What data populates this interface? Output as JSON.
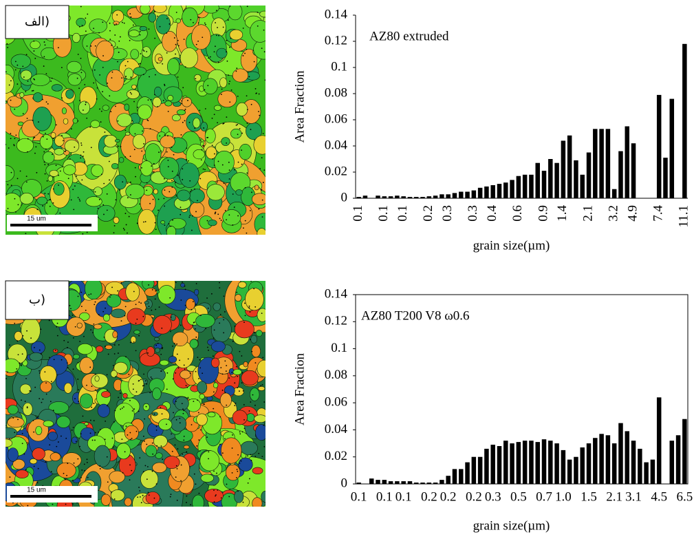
{
  "images": [
    {
      "label": "الف)",
      "scale_bar": "15 um"
    },
    {
      "label": "ب)",
      "scale_bar": "15 um"
    }
  ],
  "chart_data": [
    {
      "type": "bar",
      "annotation": "AZ80 extruded",
      "y_label": "Area Fraction",
      "x_label": "grain size(µm)",
      "categories": [
        "0.1",
        null,
        null,
        null,
        "0.1",
        null,
        null,
        "0.1",
        null,
        null,
        null,
        "0.2",
        null,
        null,
        "0.3",
        null,
        null,
        null,
        "0.3",
        null,
        null,
        "0.4",
        null,
        null,
        null,
        "0.6",
        null,
        null,
        null,
        "0.9",
        null,
        null,
        "1.4",
        null,
        null,
        null,
        "2.1",
        null,
        null,
        null,
        "3.2",
        null,
        null,
        "4.9",
        null,
        null,
        null,
        "7.4",
        null,
        null,
        null,
        "11.1"
      ],
      "values": [
        0.001,
        0.002,
        0,
        0.002,
        0.0015,
        0.0015,
        0.002,
        0.0015,
        0.001,
        0.001,
        0.001,
        0.0015,
        0.002,
        0.003,
        0.003,
        0.004,
        0.005,
        0.005,
        0.006,
        0.008,
        0.009,
        0.01,
        0.011,
        0.012,
        0.014,
        0.017,
        0.018,
        0.018,
        0.027,
        0.021,
        0.03,
        0.027,
        0.044,
        0.048,
        0.029,
        0.018,
        0.035,
        0.053,
        0.053,
        0.053,
        0.007,
        0.036,
        0.055,
        0.042,
        0,
        0,
        0,
        0.079,
        0.031,
        0.076,
        0,
        0.118
      ],
      "color": "#000000",
      "ylim": [
        0,
        0.14
      ],
      "yticks": [
        0,
        0.02,
        0.04,
        0.06,
        0.08,
        0.1,
        0.12,
        0.14
      ],
      "frame": false,
      "xtick_rotation": 90
    },
    {
      "type": "bar",
      "annotation": "AZ80 T200 V8 ω0.6",
      "y_label": "Area Fraction",
      "x_label": "grain size(µm)",
      "categories": [
        "0.1",
        null,
        null,
        null,
        "0.1",
        null,
        null,
        "0.1",
        null,
        null,
        null,
        "0.2",
        null,
        null,
        "0.2",
        null,
        null,
        null,
        "0.2",
        null,
        null,
        "0.3",
        null,
        null,
        null,
        "0.5",
        null,
        null,
        null,
        "0.7",
        null,
        null,
        "1.0",
        null,
        null,
        null,
        "1.5",
        null,
        null,
        null,
        "2.1",
        null,
        null,
        "3.1",
        null,
        null,
        null,
        "4.5",
        null,
        null,
        null,
        "6.5"
      ],
      "values": [
        0.001,
        0,
        0.004,
        0.003,
        0.003,
        0.002,
        0.002,
        0.002,
        0.002,
        0.001,
        0.001,
        0.001,
        0.001,
        0.003,
        0.006,
        0.011,
        0.011,
        0.016,
        0.02,
        0.02,
        0.026,
        0.029,
        0.028,
        0.032,
        0.03,
        0.031,
        0.032,
        0.032,
        0.031,
        0.033,
        0.032,
        0.03,
        0.025,
        0.018,
        0.02,
        0.027,
        0.03,
        0.034,
        0.037,
        0.036,
        0.03,
        0.045,
        0.039,
        0.032,
        0.026,
        0.016,
        0.018,
        0.064,
        0,
        0.032,
        0.036,
        0.048
      ],
      "color": "#000000",
      "ylim": [
        0,
        0.14
      ],
      "yticks": [
        0,
        0.02,
        0.04,
        0.06,
        0.08,
        0.1,
        0.12,
        0.14
      ],
      "frame": true,
      "xtick_rotation": 0
    }
  ]
}
